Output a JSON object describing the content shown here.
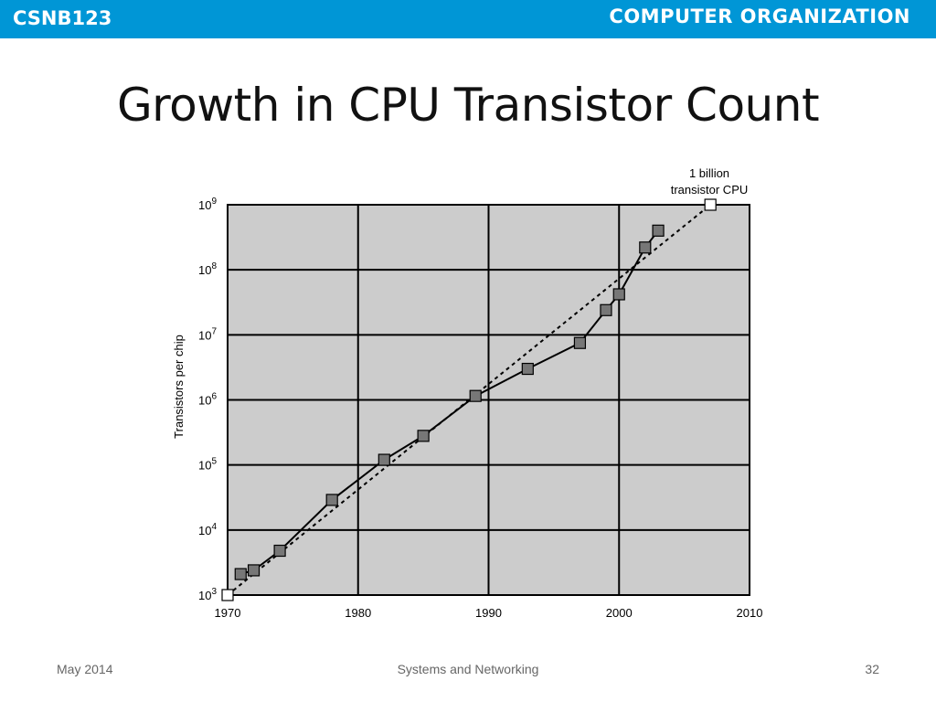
{
  "header": {
    "course_code": "CSNB123",
    "course_title": "COMPUTER ORGANIZATION"
  },
  "slide": {
    "title": "Growth in CPU Transistor Count"
  },
  "footer": {
    "date": "May 2014",
    "center": "Systems and Networking",
    "page": "32"
  },
  "colors": {
    "header_bg": "#0096d6",
    "plot_bg": "#cccccc",
    "marker_fill": "#777777",
    "marker_open": "#ffffff"
  },
  "chart_data": {
    "type": "line",
    "ylabel": "Transistors per chip",
    "xlabel": "",
    "xlim": [
      1970,
      2010
    ],
    "ylim": [
      1000,
      1000000000
    ],
    "y_scale": "log",
    "grid": true,
    "x_ticks": [
      "1970",
      "1980",
      "1990",
      "2000",
      "2010"
    ],
    "y_ticks": [
      {
        "base": "10",
        "exp": "3",
        "value": 1000
      },
      {
        "base": "10",
        "exp": "4",
        "value": 10000
      },
      {
        "base": "10",
        "exp": "5",
        "value": 100000
      },
      {
        "base": "10",
        "exp": "6",
        "value": 1000000
      },
      {
        "base": "10",
        "exp": "7",
        "value": 10000000
      },
      {
        "base": "10",
        "exp": "8",
        "value": 100000000
      },
      {
        "base": "10",
        "exp": "9",
        "value": 1000000000
      }
    ],
    "series": [
      {
        "style": "solid",
        "points": [
          {
            "x": 1971,
            "y": 2100
          },
          {
            "x": 1972,
            "y": 2400
          },
          {
            "x": 1974,
            "y": 4800
          },
          {
            "x": 1978,
            "y": 29000
          },
          {
            "x": 1982,
            "y": 120000
          },
          {
            "x": 1985,
            "y": 280000
          },
          {
            "x": 1989,
            "y": 1150000
          },
          {
            "x": 1993,
            "y": 3000000
          },
          {
            "x": 1997,
            "y": 7500000
          },
          {
            "x": 1999,
            "y": 24000000
          },
          {
            "x": 2000,
            "y": 42000000
          },
          {
            "x": 2002,
            "y": 220000000
          },
          {
            "x": 2003,
            "y": 400000000
          }
        ]
      },
      {
        "style": "dashed",
        "points": [
          {
            "x": 1970,
            "y": 1000
          },
          {
            "x": 2007,
            "y": 1000000000
          }
        ]
      }
    ],
    "annotations": [
      {
        "text_line1": "1 billion",
        "text_line2": "transistor CPU",
        "x": 2007,
        "y": 1000000000
      }
    ]
  }
}
